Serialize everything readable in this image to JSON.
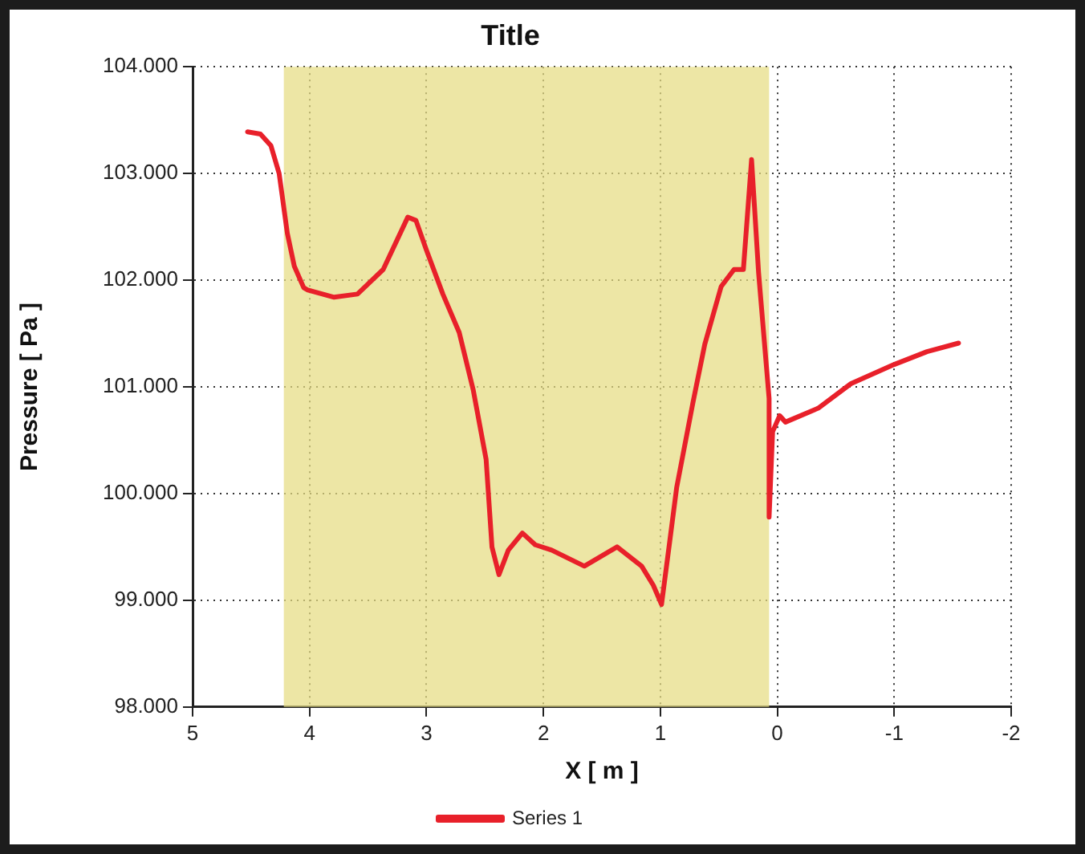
{
  "chart_data": {
    "type": "line",
    "title": "Title",
    "xlabel": "X [ m ]",
    "ylabel": "Pressure [ Pa ]",
    "xlim": [
      5,
      -2
    ],
    "xticks": [
      5,
      4,
      3,
      2,
      1,
      0,
      -1,
      -2
    ],
    "ylim": [
      98000,
      104000
    ],
    "yticks": [
      {
        "value": 98000,
        "label": "98.000"
      },
      {
        "value": 99000,
        "label": "99.000"
      },
      {
        "value": 100000,
        "label": "100.000"
      },
      {
        "value": 101000,
        "label": "101.000"
      },
      {
        "value": 102000,
        "label": "102.000"
      },
      {
        "value": 103000,
        "label": "103.000"
      },
      {
        "value": 104000,
        "label": "104.000"
      }
    ],
    "grid": true,
    "legend": "bottom",
    "marker": "none",
    "line_style": "solid",
    "bands": [
      {
        "axis": "x",
        "from": 4.22,
        "to": 0.07,
        "color": "#e6dc82"
      }
    ],
    "series": [
      {
        "name": "Series 1",
        "color": "#e8202a",
        "x": [
          4.53,
          4.42,
          4.33,
          4.26,
          4.19,
          4.13,
          4.05,
          4.02,
          3.79,
          3.59,
          3.37,
          3.16,
          3.09,
          3.0,
          2.86,
          2.72,
          2.6,
          2.49,
          2.44,
          2.38,
          2.3,
          2.18,
          2.07,
          1.93,
          1.65,
          1.37,
          1.16,
          1.06,
          0.99,
          0.92,
          0.86,
          0.72,
          0.62,
          0.48,
          0.37,
          0.29,
          0.22,
          0.16,
          0.07,
          0.07,
          0.04,
          -0.02,
          -0.07,
          -0.35,
          -0.63,
          -1.0,
          -1.28,
          -1.55
        ],
        "values": [
          103390,
          103370,
          103260,
          103000,
          102440,
          102130,
          101930,
          101910,
          101840,
          101870,
          102100,
          102590,
          102560,
          102280,
          101870,
          101510,
          100970,
          100320,
          99500,
          99240,
          99470,
          99630,
          99520,
          99470,
          99320,
          99500,
          99320,
          99140,
          98960,
          99550,
          100060,
          100860,
          101400,
          101940,
          102100,
          102100,
          103130,
          102070,
          100890,
          99780,
          100580,
          100730,
          100670,
          100800,
          101030,
          101210,
          101330,
          101410
        ]
      }
    ]
  }
}
